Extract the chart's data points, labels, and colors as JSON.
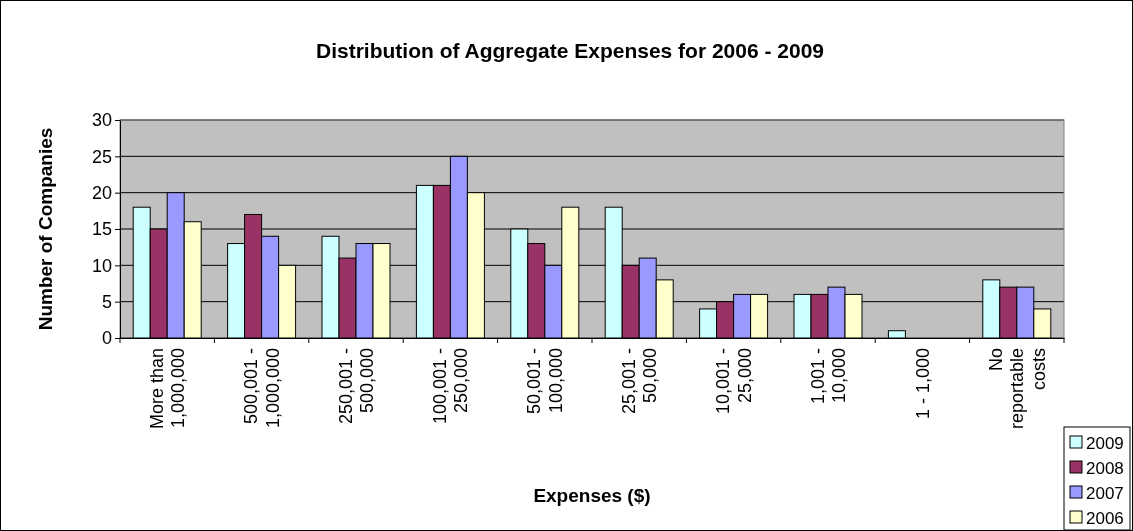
{
  "chart_data": {
    "type": "bar",
    "title": "Distribution of Aggregate Expenses for 2006 - 2009",
    "xlabel": "Expenses ($)",
    "ylabel": "Number of Companies",
    "categories": [
      "More than\n1,000,000",
      "500,001 -\n1,000,000",
      "250,001 -\n500,000",
      "100,001 -\n250,000",
      "50,001 -\n100,000",
      "25,001 -\n50,000",
      "10,001 -\n25,000",
      "1,001 -\n10,000",
      "1 - 1,000",
      "No\nreportable\ncosts"
    ],
    "series": [
      {
        "name": "2009",
        "color": "#ccffff",
        "values": [
          18,
          13,
          14,
          21,
          15,
          18,
          4,
          6,
          1,
          8
        ]
      },
      {
        "name": "2008",
        "color": "#993366",
        "values": [
          15,
          17,
          11,
          21,
          13,
          10,
          5,
          6,
          0,
          7
        ]
      },
      {
        "name": "2007",
        "color": "#9999ff",
        "values": [
          20,
          14,
          13,
          25,
          10,
          11,
          6,
          7,
          0,
          7
        ]
      },
      {
        "name": "2006",
        "color": "#ffffcc",
        "values": [
          16,
          10,
          13,
          20,
          18,
          8,
          6,
          6,
          0,
          4
        ]
      }
    ],
    "ylim": [
      0,
      30
    ],
    "yticks": [
      0,
      5,
      10,
      15,
      20,
      25,
      30
    ],
    "grid": "y",
    "legend": "bottom right"
  }
}
